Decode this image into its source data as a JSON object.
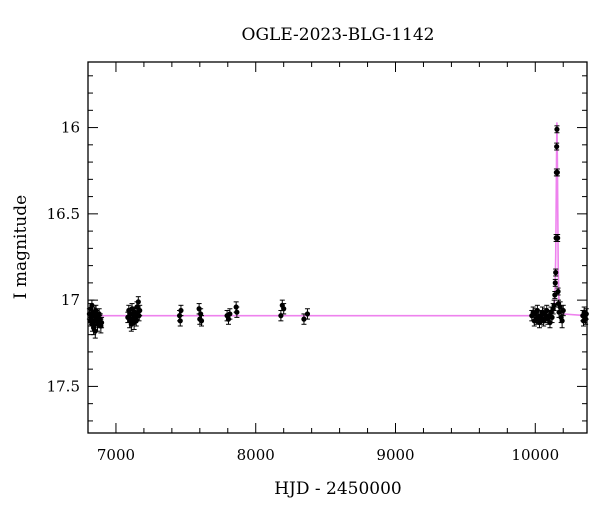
{
  "chart_data": {
    "type": "scatter",
    "title": "OGLE-2023-BLG-1142",
    "xlabel": "HJD - 2450000",
    "ylabel": "I magnitude",
    "xlim": [
      6800,
      10370
    ],
    "ylim": [
      17.77,
      15.62
    ],
    "y_inverted": true,
    "grid": false,
    "x_ticks": [
      7000,
      8000,
      9000,
      10000
    ],
    "x_tick_labels": [
      "7000",
      "8000",
      "9000",
      "10000"
    ],
    "y_ticks": [
      16,
      16.5,
      17,
      17.5
    ],
    "y_tick_labels": [
      "16",
      "16.5",
      "17",
      "17.5"
    ],
    "baseline_mag": 17.09,
    "colors": {
      "points": "#000000",
      "model": "#ee82ee"
    },
    "series": [
      {
        "type": "scatter_errorbar",
        "points": [
          [
            6810,
            17.08,
            0.03
          ],
          [
            6815,
            17.12,
            0.03
          ],
          [
            6820,
            17.05,
            0.03
          ],
          [
            6825,
            17.1,
            0.04
          ],
          [
            6828,
            17.03,
            0.03
          ],
          [
            6832,
            17.14,
            0.04
          ],
          [
            6836,
            17.09,
            0.03
          ],
          [
            6840,
            17.16,
            0.04
          ],
          [
            6845,
            17.07,
            0.03
          ],
          [
            6848,
            17.12,
            0.03
          ],
          [
            6852,
            17.18,
            0.04
          ],
          [
            6856,
            17.06,
            0.03
          ],
          [
            6860,
            17.11,
            0.03
          ],
          [
            6864,
            17.09,
            0.03
          ],
          [
            6868,
            17.14,
            0.04
          ],
          [
            6872,
            17.1,
            0.03
          ],
          [
            6876,
            17.13,
            0.03
          ],
          [
            6880,
            17.08,
            0.03
          ],
          [
            6884,
            17.12,
            0.03
          ],
          [
            6888,
            17.11,
            0.03
          ],
          [
            6892,
            17.15,
            0.04
          ],
          [
            6897,
            17.13,
            0.03
          ],
          [
            7085,
            17.1,
            0.03
          ],
          [
            7092,
            17.06,
            0.03
          ],
          [
            7098,
            17.12,
            0.04
          ],
          [
            7104,
            17.08,
            0.03
          ],
          [
            7110,
            17.14,
            0.04
          ],
          [
            7115,
            17.05,
            0.03
          ],
          [
            7120,
            17.11,
            0.03
          ],
          [
            7125,
            17.09,
            0.03
          ],
          [
            7130,
            17.13,
            0.04
          ],
          [
            7135,
            17.07,
            0.03
          ],
          [
            7140,
            17.1,
            0.03
          ],
          [
            7145,
            17.12,
            0.03
          ],
          [
            7150,
            17.04,
            0.03
          ],
          [
            7155,
            17.08,
            0.03
          ],
          [
            7160,
            17.01,
            0.03
          ],
          [
            7165,
            17.09,
            0.03
          ],
          [
            7170,
            17.06,
            0.03
          ],
          [
            7455,
            17.09,
            0.03
          ],
          [
            7460,
            17.12,
            0.03
          ],
          [
            7465,
            17.06,
            0.03
          ],
          [
            7595,
            17.05,
            0.03
          ],
          [
            7600,
            17.11,
            0.03
          ],
          [
            7606,
            17.08,
            0.03
          ],
          [
            7612,
            17.12,
            0.03
          ],
          [
            7795,
            17.09,
            0.03
          ],
          [
            7805,
            17.11,
            0.03
          ],
          [
            7815,
            17.08,
            0.03
          ],
          [
            7860,
            17.04,
            0.03
          ],
          [
            7865,
            17.07,
            0.03
          ],
          [
            8180,
            17.09,
            0.03
          ],
          [
            8190,
            17.03,
            0.03
          ],
          [
            8200,
            17.05,
            0.03
          ],
          [
            8345,
            17.11,
            0.03
          ],
          [
            8370,
            17.08,
            0.03
          ],
          [
            9975,
            17.09,
            0.03
          ],
          [
            9985,
            17.07,
            0.03
          ],
          [
            9993,
            17.12,
            0.03
          ],
          [
            10000,
            17.08,
            0.03
          ],
          [
            10008,
            17.11,
            0.03
          ],
          [
            10015,
            17.06,
            0.03
          ],
          [
            10022,
            17.1,
            0.03
          ],
          [
            10030,
            17.13,
            0.03
          ],
          [
            10038,
            17.09,
            0.03
          ],
          [
            10045,
            17.11,
            0.03
          ],
          [
            10052,
            17.07,
            0.03
          ],
          [
            10060,
            17.12,
            0.03
          ],
          [
            10068,
            17.08,
            0.03
          ],
          [
            10075,
            17.1,
            0.03
          ],
          [
            10082,
            17.06,
            0.03
          ],
          [
            10090,
            17.11,
            0.03
          ],
          [
            10098,
            17.09,
            0.03
          ],
          [
            10105,
            17.13,
            0.03
          ],
          [
            10112,
            17.07,
            0.03
          ],
          [
            10120,
            17.1,
            0.03
          ],
          [
            10128,
            17.05,
            0.03
          ],
          [
            10135,
            17.03,
            0.03
          ],
          [
            10140,
            16.97,
            0.02
          ],
          [
            10143,
            16.9,
            0.02
          ],
          [
            10146,
            16.84,
            0.02
          ],
          [
            10149,
            16.64,
            0.02
          ],
          [
            10151,
            16.26,
            0.02
          ],
          [
            10153,
            16.11,
            0.02
          ],
          [
            10155,
            16.01,
            0.02
          ],
          [
            10158,
            16.26,
            0.02
          ],
          [
            10160,
            16.64,
            0.02
          ],
          [
            10163,
            16.95,
            0.02
          ],
          [
            10166,
            17.02,
            0.02
          ],
          [
            10170,
            17.07,
            0.03
          ],
          [
            10178,
            17.04,
            0.03
          ],
          [
            10185,
            17.1,
            0.03
          ],
          [
            10192,
            17.12,
            0.04
          ],
          [
            10200,
            17.06,
            0.03
          ],
          [
            10340,
            17.09,
            0.03
          ],
          [
            10345,
            17.12,
            0.03
          ],
          [
            10350,
            17.07,
            0.03
          ],
          [
            10355,
            17.1,
            0.03
          ],
          [
            10360,
            17.11,
            0.03
          ],
          [
            10365,
            17.08,
            0.03
          ]
        ]
      },
      {
        "type": "model_line",
        "points": [
          [
            6800,
            17.09
          ],
          [
            10100,
            17.09
          ],
          [
            10120,
            17.08
          ],
          [
            10130,
            17.06
          ],
          [
            10137,
            17.02
          ],
          [
            10142,
            16.93
          ],
          [
            10146,
            16.75
          ],
          [
            10149,
            16.5
          ],
          [
            10152,
            16.2
          ],
          [
            10155,
            15.97
          ],
          [
            10158,
            16.2
          ],
          [
            10161,
            16.5
          ],
          [
            10164,
            16.8
          ],
          [
            10168,
            16.98
          ],
          [
            10175,
            17.06
          ],
          [
            10190,
            17.08
          ],
          [
            10370,
            17.09
          ]
        ]
      }
    ]
  }
}
